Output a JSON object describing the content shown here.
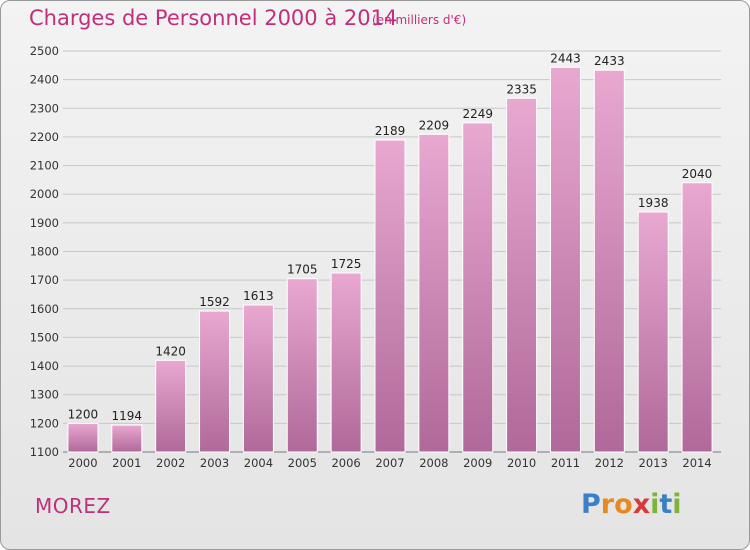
{
  "header": {
    "title": "Charges de Personnel 2000 à 2014",
    "unit": "(en milliers d'€)"
  },
  "footer": {
    "location": "MOREZ",
    "logo_text": "Proxiti"
  },
  "colors": {
    "accent": "#c02f7a",
    "bar_top": "#e8a8d0",
    "bar_bottom": "#b0699a"
  },
  "chart_data": {
    "type": "bar",
    "categories": [
      "2000",
      "2001",
      "2002",
      "2003",
      "2004",
      "2005",
      "2006",
      "2007",
      "2008",
      "2009",
      "2010",
      "2011",
      "2012",
      "2013",
      "2014"
    ],
    "values": [
      1200,
      1194,
      1420,
      1592,
      1613,
      1705,
      1725,
      2189,
      2209,
      2249,
      2335,
      2443,
      2433,
      1938,
      2040
    ],
    "title": "Charges de Personnel 2000 à 2014",
    "ylim": [
      1100,
      2500
    ],
    "yticks": [
      1100,
      1200,
      1300,
      1400,
      1500,
      1600,
      1700,
      1800,
      1900,
      2000,
      2100,
      2200,
      2300,
      2400,
      2500
    ],
    "grid": true
  }
}
